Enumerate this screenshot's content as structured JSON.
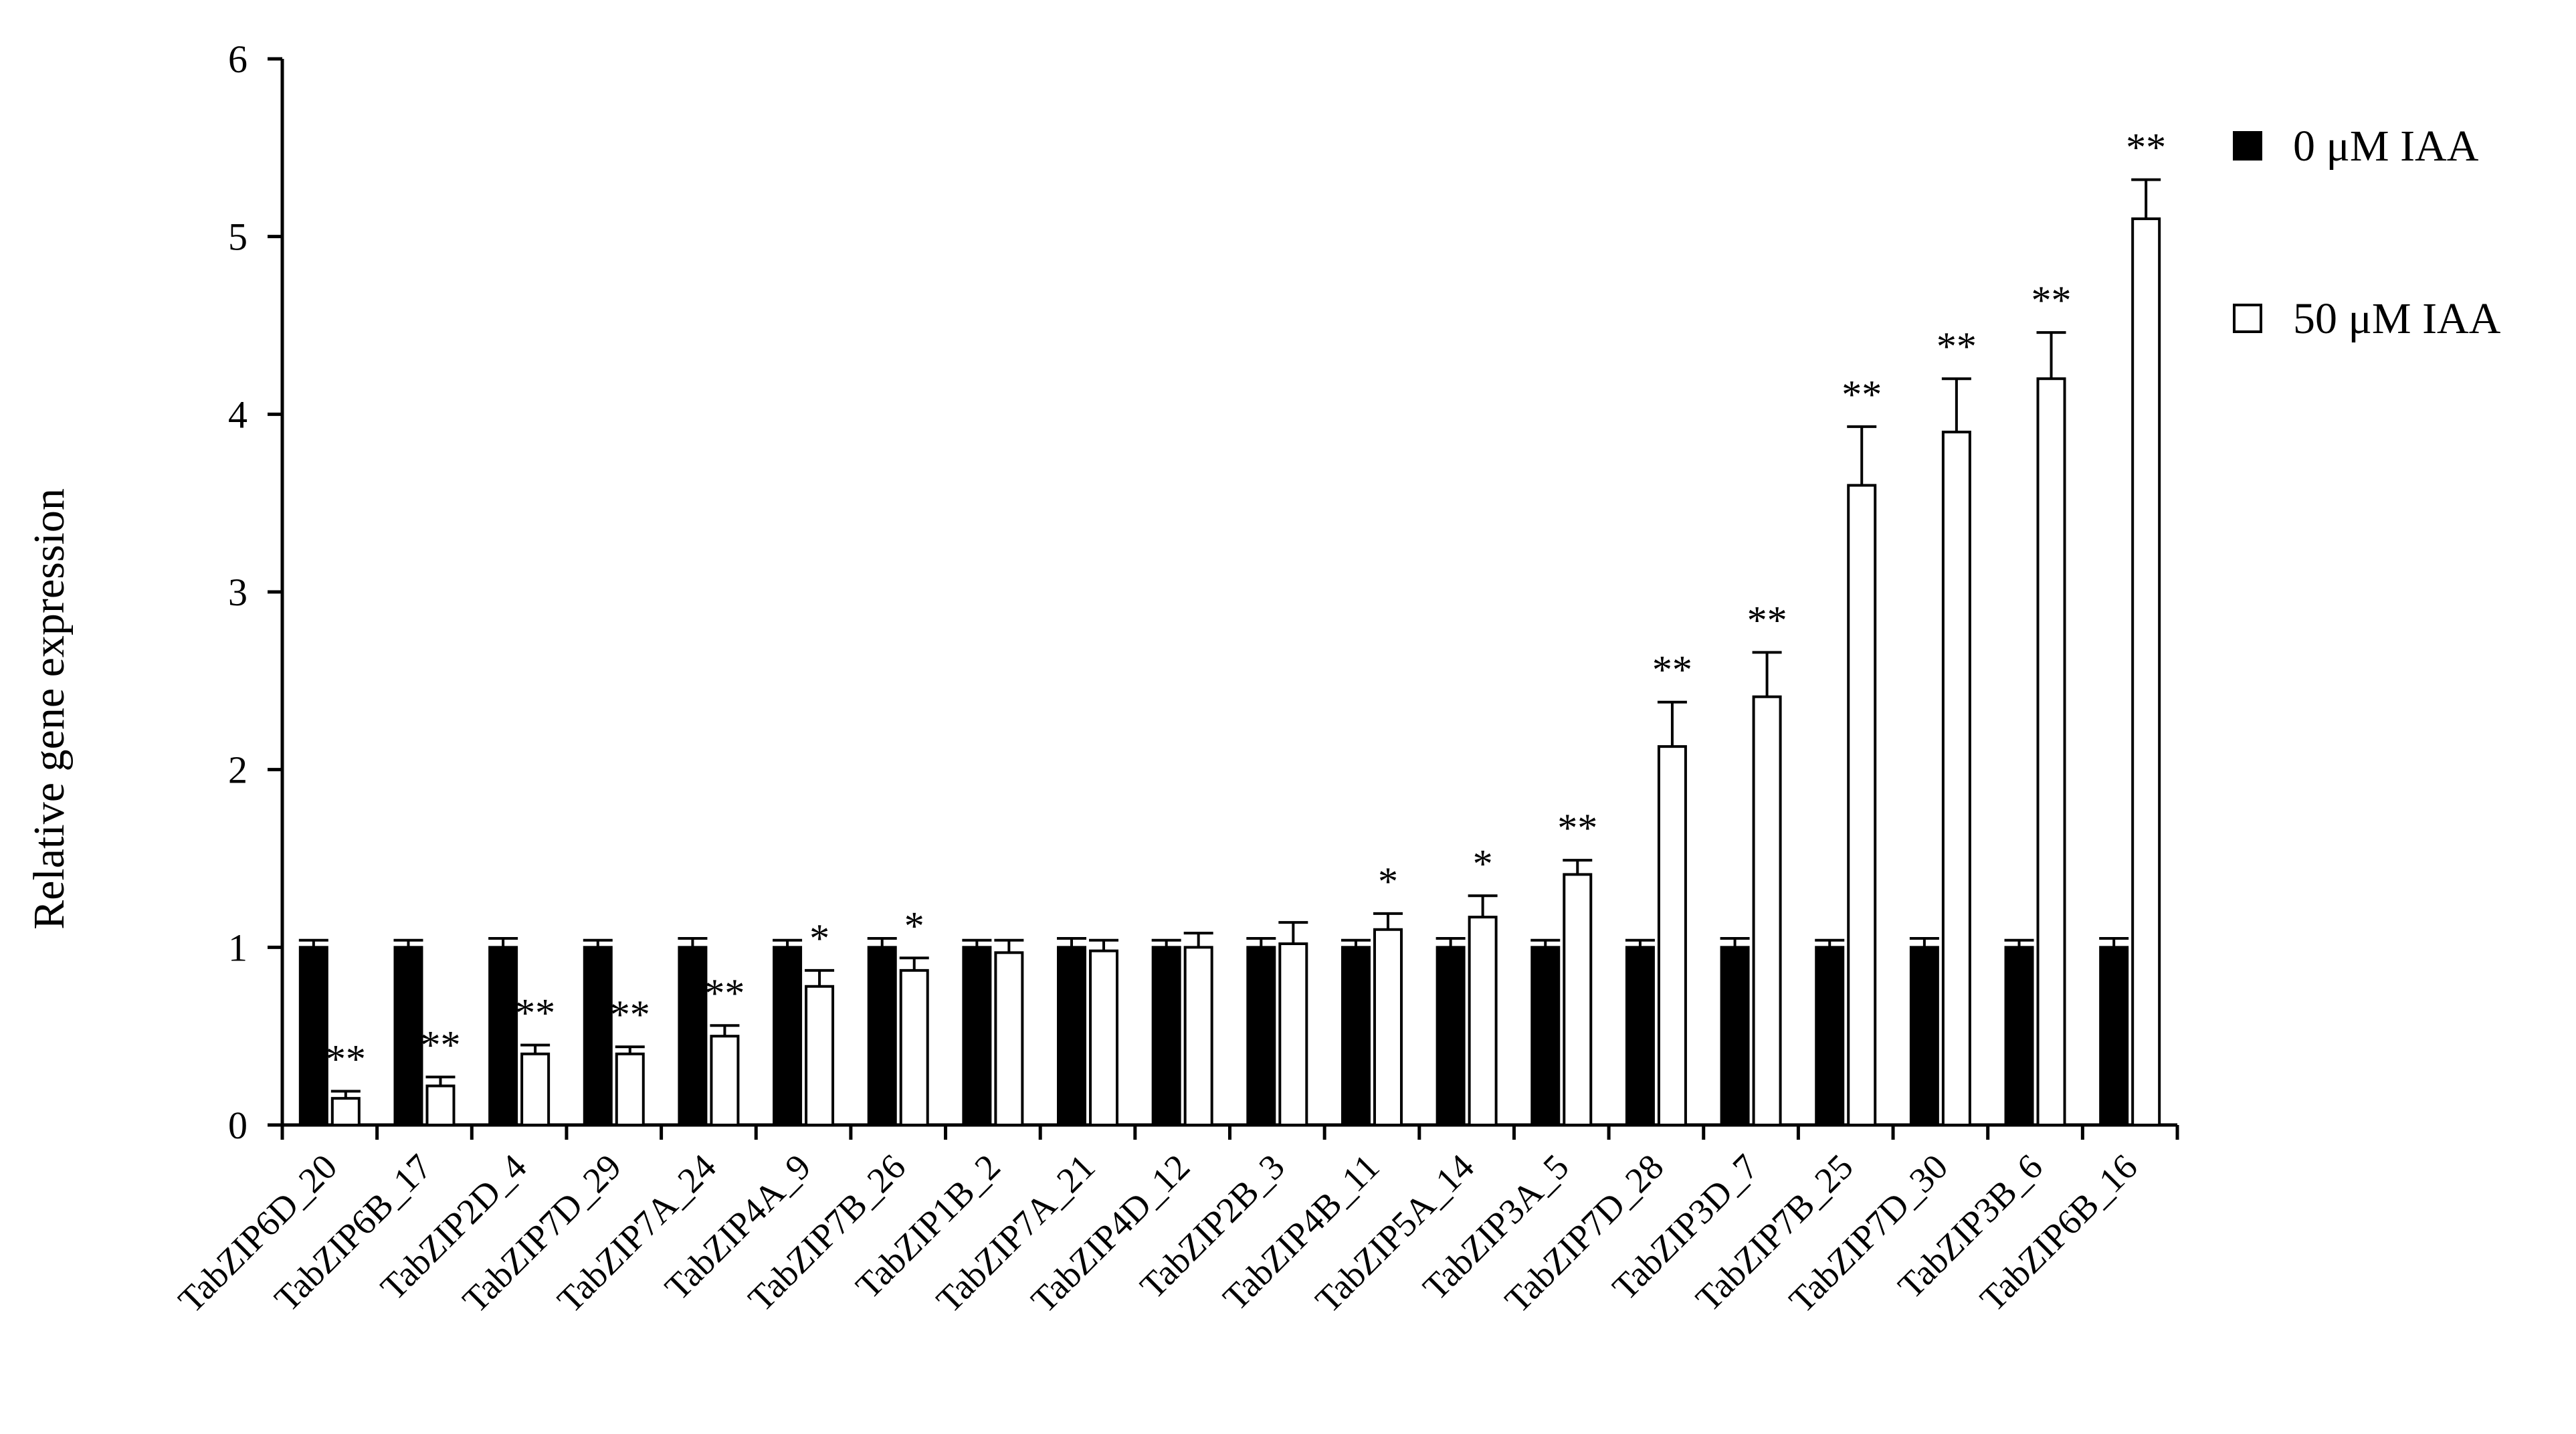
{
  "chart_data": {
    "type": "bar",
    "title": "",
    "xlabel": "",
    "ylabel": "Relative gene expression",
    "ylim": [
      0,
      6
    ],
    "yticks": [
      0,
      1,
      2,
      3,
      4,
      5,
      6
    ],
    "grid": false,
    "legend_position": "top-right",
    "categories": [
      "TabZIP6D_20",
      "TabZIP6B_17",
      "TabZIP2D_4",
      "TabZIP7D_29",
      "TabZIP7A_24",
      "TabZIP4A_9",
      "TabZIP7B_26",
      "TabZIP1B_2",
      "TabZIP7A_21",
      "TabZIP4D_12",
      "TabZIP2B_3",
      "TabZIP4B_11",
      "TabZIP5A_14",
      "TabZIP3A_5",
      "TabZIP7D_28",
      "TabZIP3D_7",
      "TabZIP7B_25",
      "TabZIP7D_30",
      "TabZIP3B_6",
      "TabZIP6B_16"
    ],
    "series": [
      {
        "name": "0 μM IAA",
        "color": "#000000",
        "values": [
          1,
          1,
          1,
          1,
          1,
          1,
          1,
          1,
          1,
          1,
          1,
          1,
          1,
          1,
          1,
          1,
          1,
          1,
          1,
          1
        ],
        "errors": [
          0.04,
          0.04,
          0.05,
          0.04,
          0.05,
          0.04,
          0.05,
          0.04,
          0.05,
          0.04,
          0.05,
          0.04,
          0.05,
          0.04,
          0.04,
          0.05,
          0.04,
          0.05,
          0.04,
          0.05
        ]
      },
      {
        "name": "50 μM IAA",
        "color": "#ffffff",
        "values": [
          0.15,
          0.22,
          0.4,
          0.4,
          0.5,
          0.78,
          0.87,
          0.97,
          0.98,
          1.0,
          1.02,
          1.1,
          1.17,
          1.41,
          2.13,
          2.41,
          3.6,
          3.9,
          4.2,
          5.1
        ],
        "errors": [
          0.04,
          0.05,
          0.05,
          0.04,
          0.06,
          0.09,
          0.07,
          0.07,
          0.06,
          0.08,
          0.12,
          0.09,
          0.12,
          0.08,
          0.25,
          0.25,
          0.33,
          0.3,
          0.26,
          0.22
        ]
      }
    ],
    "significance": [
      "**",
      "**",
      "**",
      "**",
      "**",
      "*",
      "*",
      "",
      "",
      "",
      "",
      "*",
      "*",
      "**",
      "**",
      "**",
      "**",
      "**",
      "**",
      "**"
    ]
  }
}
